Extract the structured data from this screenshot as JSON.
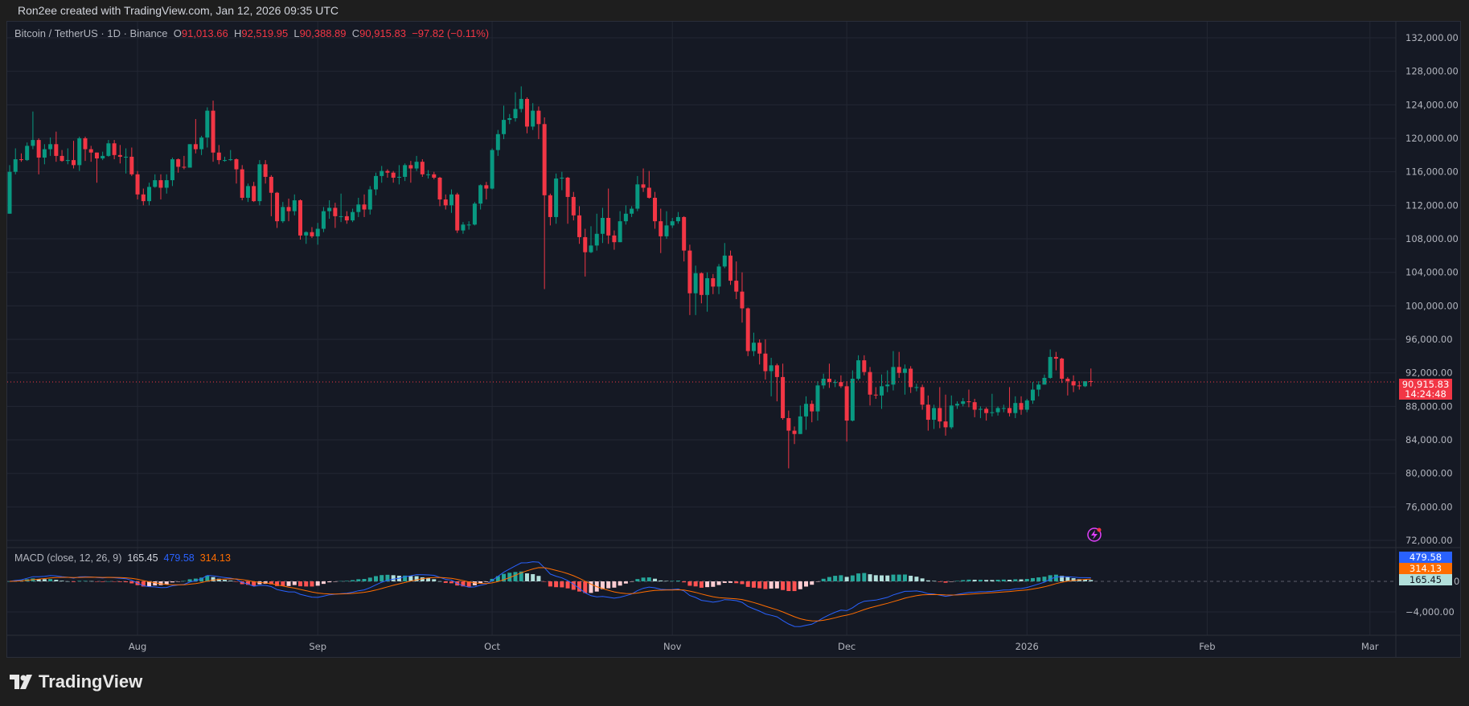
{
  "header": {
    "attribution": "Ron2ee created with TradingView.com, Jan 12, 2026 09:35 UTC"
  },
  "legend": {
    "symbol": "Bitcoin / TetherUS · 1D · Binance",
    "o_label": "O",
    "o": "91,013.66",
    "h_label": "H",
    "h": "92,519.95",
    "l_label": "L",
    "l": "90,388.89",
    "c_label": "C",
    "c": "90,915.83",
    "change": "−97.82 (−0.11%)"
  },
  "macd_legend": {
    "label": "MACD (close, 12, 26, 9)",
    "histogram": "165.45",
    "macd": "479.58",
    "signal": "314.13"
  },
  "price_tag": {
    "price": "90,915.83",
    "countdown": "14:24:48"
  },
  "macd_tags": {
    "macd": "479.58",
    "signal": "314.13",
    "histogram": "165.45"
  },
  "brand": "TradingView",
  "colors": {
    "up": "#089981",
    "down": "#f23645",
    "macd": "#2962ff",
    "signal": "#ff6d00",
    "hist_up_strong": "#26a69a",
    "hist_up_weak": "#b2dfdb",
    "hist_dn_strong": "#ff5252",
    "hist_dn_weak": "#ffcdd2",
    "background": "#151924",
    "grid": "#232733"
  },
  "icons": {
    "alert": "lightning-icon",
    "logo": "tradingview-logo-icon"
  },
  "chart_data": {
    "type": "candlestick",
    "symbol": "BTCUSDT",
    "interval": "1D",
    "start_date": "2025-07-10",
    "end_date": "2026-01-12",
    "ylim": [
      70000,
      134000
    ],
    "y_ticks": [
      "132,000.00",
      "128,000.00",
      "124,000.00",
      "120,000.00",
      "116,000.00",
      "112,000.00",
      "108,000.00",
      "104,000.00",
      "100,000.00",
      "96,000.00",
      "92,000.00",
      "88,000.00",
      "84,000.00",
      "80,000.00",
      "76,000.00",
      "72,000.00"
    ],
    "x_ticks": [
      {
        "label": "Aug",
        "date": "2025-08-01"
      },
      {
        "label": "Sep",
        "date": "2025-09-01"
      },
      {
        "label": "Oct",
        "date": "2025-10-01"
      },
      {
        "label": "Nov",
        "date": "2025-11-01"
      },
      {
        "label": "Dec",
        "date": "2025-12-01"
      },
      {
        "label": "2026",
        "date": "2026-01-01"
      },
      {
        "label": "Feb",
        "date": "2026-02-01"
      },
      {
        "label": "Mar",
        "date": "2026-03-01"
      }
    ],
    "macd_ticks": [
      "0",
      "−4,000.00"
    ],
    "grid": true,
    "first_open": 111000,
    "last_open": 91013.66,
    "close": [
      116000,
      117500,
      117400,
      119100,
      119800,
      117700,
      118700,
      119300,
      117900,
      117300,
      117400,
      116800,
      120000,
      118700,
      118300,
      117600,
      117900,
      119400,
      118000,
      117800,
      117800,
      115700,
      113300,
      112500,
      114200,
      115000,
      114100,
      115000,
      117500,
      116600,
      116500,
      119300,
      118700,
      120100,
      123300,
      118300,
      117400,
      117400,
      117500,
      116300,
      112900,
      114300,
      112500,
      116900,
      115400,
      113500,
      110100,
      111800,
      111300,
      112600,
      108400,
      108800,
      108300,
      109200,
      111300,
      111700,
      110700,
      110700,
      110200,
      111200,
      112100,
      111500,
      113900,
      115500,
      116100,
      115900,
      115300,
      115400,
      116800,
      116400,
      117200,
      115700,
      115700,
      115300,
      112700,
      112000,
      113300,
      109000,
      109700,
      109700,
      112200,
      114400,
      114000,
      118600,
      120500,
      122200,
      122400,
      123500,
      124700,
      121400,
      123300,
      121700,
      113200,
      110600,
      115200,
      115300,
      113000,
      110800,
      108200,
      106400,
      107200,
      108600,
      110500,
      108400,
      107600,
      110100,
      111000,
      111600,
      114500,
      114100,
      112900,
      110100,
      108300,
      109600,
      110100,
      110600,
      106600,
      101500,
      103900,
      101300,
      103300,
      102300,
      104700,
      106000,
      103000,
      101700,
      99700,
      94600,
      95600,
      94300,
      92200,
      92900,
      91500,
      86600,
      85100,
      84700,
      86800,
      88300,
      87400,
      90500,
      91300,
      90900,
      90900,
      90400,
      86300,
      91300,
      93500,
      92100,
      89400,
      89300,
      90400,
      90600,
      92700,
      92000,
      92500,
      90300,
      90300,
      88200,
      86400,
      87800,
      86200,
      85500,
      88100,
      88300,
      88600,
      88500,
      87600,
      87700,
      87200,
      87300,
      87800,
      87800,
      87200,
      88400,
      87600,
      88700,
      90000,
      90600,
      91400,
      93900,
      93700,
      91300,
      91000,
      90500,
      90400,
      91000,
      90915.83
    ],
    "high": [
      116800,
      118800,
      118200,
      119500,
      123200,
      120000,
      119300,
      120100,
      120800,
      118600,
      118800,
      119700,
      120200,
      120200,
      119100,
      118300,
      118400,
      119800,
      119800,
      119200,
      118800,
      118900,
      116100,
      114000,
      114700,
      115700,
      115700,
      115700,
      117700,
      117600,
      117900,
      119300,
      122300,
      120300,
      123700,
      124500,
      119200,
      117800,
      118600,
      117600,
      116800,
      114600,
      114800,
      117400,
      117400,
      115600,
      113600,
      112400,
      112800,
      113300,
      112700,
      108900,
      109400,
      109900,
      111800,
      112600,
      112300,
      113400,
      111300,
      111600,
      112900,
      113300,
      114300,
      115900,
      116700,
      116300,
      116100,
      116800,
      117000,
      117300,
      117900,
      117500,
      116200,
      116000,
      115400,
      113300,
      113900,
      113500,
      110000,
      110100,
      112400,
      114500,
      114800,
      118800,
      121000,
      123900,
      122900,
      125500,
      126200,
      124900,
      124200,
      123800,
      122500,
      113400,
      115800,
      116000,
      115400,
      113600,
      111900,
      109200,
      109500,
      111000,
      111700,
      114000,
      109000,
      111300,
      112000,
      111900,
      115500,
      116400,
      116100,
      113600,
      111600,
      111300,
      110500,
      111200,
      110700,
      107300,
      104800,
      104000,
      104000,
      103800,
      105000,
      107500,
      106600,
      105300,
      104000,
      99800,
      96800,
      96000,
      96000,
      93800,
      93100,
      93100,
      87500,
      85600,
      88100,
      89200,
      88700,
      91000,
      91900,
      93100,
      91200,
      91700,
      91000,
      92300,
      94100,
      94100,
      92700,
      90300,
      91800,
      92300,
      94600,
      94500,
      93000,
      92800,
      90700,
      90600,
      89300,
      88200,
      90300,
      89400,
      89300,
      88600,
      89000,
      90000,
      88900,
      88000,
      87900,
      89500,
      88000,
      88200,
      90300,
      89200,
      89200,
      88900,
      90900,
      91000,
      91800,
      94800,
      94500,
      93800,
      91500,
      91700,
      91000,
      91000,
      92519.95
    ],
    "low": [
      111000,
      115700,
      117200,
      117300,
      118700,
      115700,
      116900,
      117900,
      117200,
      117200,
      116900,
      116400,
      116100,
      117300,
      117200,
      114700,
      117400,
      117800,
      117500,
      117000,
      115800,
      115500,
      112700,
      112000,
      112000,
      114100,
      112700,
      113400,
      114300,
      115900,
      116300,
      116500,
      118200,
      118000,
      118900,
      117200,
      116900,
      117200,
      117300,
      114600,
      112600,
      112400,
      112400,
      112000,
      114600,
      110700,
      109300,
      109900,
      110100,
      110800,
      107900,
      107400,
      108100,
      107300,
      108800,
      110400,
      109300,
      110000,
      109800,
      110000,
      110600,
      110600,
      110900,
      113200,
      114700,
      115300,
      114700,
      114500,
      114900,
      114700,
      116100,
      115400,
      115200,
      115100,
      111900,
      111500,
      111100,
      108700,
      108600,
      109100,
      109600,
      111500,
      112700,
      113900,
      117900,
      119900,
      121700,
      122000,
      123100,
      120600,
      121000,
      119900,
      102000,
      109600,
      109800,
      113800,
      109800,
      110200,
      107400,
      103500,
      106300,
      106600,
      107500,
      107400,
      106700,
      107600,
      109700,
      110600,
      111300,
      113600,
      112800,
      109200,
      106300,
      108000,
      109300,
      109800,
      105300,
      98900,
      98900,
      100300,
      99300,
      101400,
      101400,
      104500,
      102500,
      100800,
      98000,
      94000,
      94000,
      93000,
      91200,
      89200,
      88600,
      86400,
      80600,
      83500,
      84700,
      85200,
      86100,
      86300,
      90100,
      90200,
      90300,
      90200,
      83800,
      86200,
      91100,
      91700,
      88100,
      88900,
      87700,
      89700,
      89900,
      91400,
      89400,
      89600,
      89800,
      87600,
      85100,
      85300,
      85400,
      84500,
      85300,
      87700,
      88000,
      87900,
      86700,
      86600,
      86300,
      86800,
      86900,
      87300,
      86800,
      86600,
      87000,
      87300,
      88300,
      89200,
      90700,
      91300,
      92300,
      90800,
      89300,
      89700,
      90000,
      90300,
      90388.89
    ],
    "macd_params": {
      "source": "close",
      "fast": 12,
      "slow": 26,
      "signal": 9
    },
    "last_price": 90915.83
  }
}
